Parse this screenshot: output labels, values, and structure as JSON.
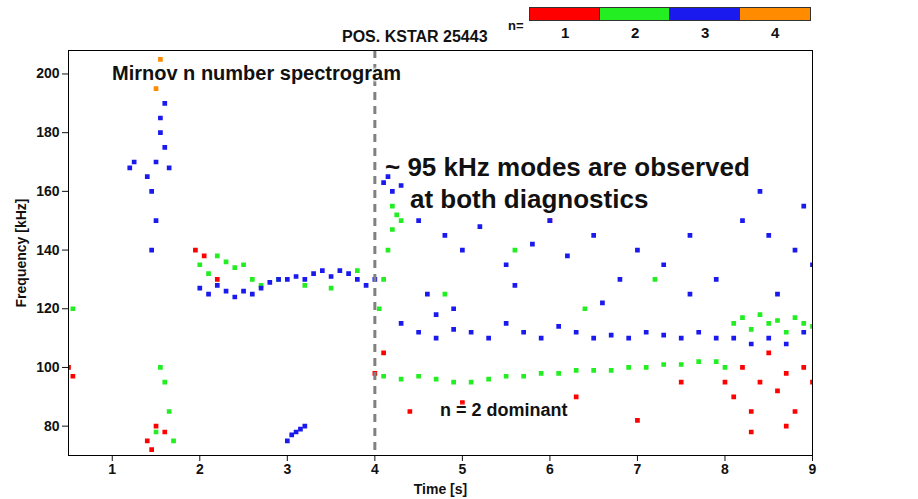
{
  "chart_data": {
    "type": "scatter",
    "title": "POS. KSTAR 25443",
    "xlabel": "Time [s]",
    "ylabel": "Frequency [kHz]",
    "xlim": [
      0.5,
      9
    ],
    "ylim": [
      70,
      208
    ],
    "xticks": [
      1,
      2,
      3,
      4,
      5,
      6,
      7,
      8,
      9
    ],
    "yticks": [
      80,
      100,
      120,
      140,
      160,
      180,
      200
    ],
    "grid": false,
    "marker": "square",
    "legend": "top-right",
    "legend_title": "n=",
    "reference_line": {
      "x": 4,
      "color": "#808080",
      "line_style": "dashed"
    },
    "annotations": [
      "Mirnov n number spectrogram",
      "~ 95 kHz modes are observed",
      "at both diagnostics",
      "n = 2 dominant"
    ],
    "series": [
      {
        "name": "1",
        "color": "#ff0000",
        "points": [
          [
            0.5,
            100
          ],
          [
            0.55,
            97
          ],
          [
            1.4,
            75
          ],
          [
            1.45,
            72
          ],
          [
            1.5,
            80
          ],
          [
            1.6,
            78
          ],
          [
            1.95,
            140
          ],
          [
            2.05,
            138
          ],
          [
            2.2,
            130
          ],
          [
            4.0,
            98
          ],
          [
            4.1,
            105
          ],
          [
            4.4,
            85
          ],
          [
            5.0,
            88
          ],
          [
            6.0,
            150
          ],
          [
            6.3,
            90
          ],
          [
            7.0,
            82
          ],
          [
            7.5,
            95
          ],
          [
            8.0,
            95
          ],
          [
            8.1,
            90
          ],
          [
            8.2,
            100
          ],
          [
            8.3,
            85
          ],
          [
            8.3,
            78
          ],
          [
            8.4,
            95
          ],
          [
            8.5,
            105
          ],
          [
            8.6,
            92
          ],
          [
            8.7,
            98
          ],
          [
            8.7,
            80
          ],
          [
            8.8,
            85
          ],
          [
            8.9,
            100
          ],
          [
            9.0,
            95
          ]
        ]
      },
      {
        "name": "2",
        "color": "#22ee22",
        "points": [
          [
            0.55,
            120
          ],
          [
            1.5,
            78
          ],
          [
            1.55,
            100
          ],
          [
            1.6,
            95
          ],
          [
            1.65,
            85
          ],
          [
            1.7,
            75
          ],
          [
            2.0,
            135
          ],
          [
            2.1,
            132
          ],
          [
            2.2,
            138
          ],
          [
            2.3,
            136
          ],
          [
            2.4,
            134
          ],
          [
            2.5,
            135
          ],
          [
            2.6,
            130
          ],
          [
            2.7,
            128
          ],
          [
            2.9,
            130
          ],
          [
            3.2,
            128
          ],
          [
            3.5,
            127
          ],
          [
            3.8,
            133
          ],
          [
            4.05,
            120
          ],
          [
            4.1,
            130
          ],
          [
            4.15,
            140
          ],
          [
            4.2,
            147
          ],
          [
            4.2,
            155
          ],
          [
            4.25,
            152
          ],
          [
            4.3,
            150
          ],
          [
            4.1,
            97
          ],
          [
            4.3,
            96
          ],
          [
            4.5,
            97
          ],
          [
            4.7,
            96
          ],
          [
            4.9,
            95
          ],
          [
            5.1,
            95
          ],
          [
            5.3,
            96
          ],
          [
            5.5,
            97
          ],
          [
            5.7,
            97
          ],
          [
            5.9,
            98
          ],
          [
            6.1,
            98
          ],
          [
            6.3,
            99
          ],
          [
            6.5,
            99
          ],
          [
            6.7,
            99
          ],
          [
            6.9,
            100
          ],
          [
            7.1,
            100
          ],
          [
            7.3,
            101
          ],
          [
            7.5,
            101
          ],
          [
            7.7,
            102
          ],
          [
            7.9,
            102
          ],
          [
            8.0,
            100
          ],
          [
            8.1,
            115
          ],
          [
            8.2,
            117
          ],
          [
            8.3,
            113
          ],
          [
            8.4,
            118
          ],
          [
            8.5,
            115
          ],
          [
            8.6,
            116
          ],
          [
            8.7,
            112
          ],
          [
            8.8,
            117
          ],
          [
            8.9,
            115
          ],
          [
            9.0,
            114
          ],
          [
            4.8,
            125
          ],
          [
            5.6,
            140
          ],
          [
            6.4,
            120
          ],
          [
            7.2,
            130
          ]
        ]
      },
      {
        "name": "3",
        "color": "#1a1aee",
        "points": [
          [
            1.2,
            168
          ],
          [
            1.25,
            170
          ],
          [
            1.4,
            165
          ],
          [
            1.45,
            160
          ],
          [
            1.45,
            140
          ],
          [
            1.5,
            170
          ],
          [
            1.5,
            150
          ],
          [
            1.55,
            180
          ],
          [
            1.55,
            185
          ],
          [
            1.6,
            175
          ],
          [
            1.6,
            190
          ],
          [
            1.65,
            168
          ],
          [
            2.0,
            127
          ],
          [
            2.1,
            125
          ],
          [
            2.2,
            128
          ],
          [
            2.3,
            126
          ],
          [
            2.4,
            124
          ],
          [
            2.5,
            126
          ],
          [
            2.6,
            125
          ],
          [
            2.7,
            127
          ],
          [
            2.8,
            129
          ],
          [
            2.9,
            130
          ],
          [
            3.0,
            130
          ],
          [
            3.1,
            131
          ],
          [
            3.2,
            130
          ],
          [
            3.3,
            132
          ],
          [
            3.4,
            133
          ],
          [
            3.5,
            131
          ],
          [
            3.6,
            133
          ],
          [
            3.7,
            132
          ],
          [
            3.8,
            130
          ],
          [
            3.9,
            128
          ],
          [
            4.0,
            130
          ],
          [
            3.0,
            75
          ],
          [
            3.05,
            77
          ],
          [
            3.1,
            78
          ],
          [
            3.15,
            79
          ],
          [
            3.2,
            80
          ],
          [
            4.1,
            163
          ],
          [
            4.15,
            165
          ],
          [
            4.2,
            160
          ],
          [
            4.3,
            162
          ],
          [
            4.3,
            115
          ],
          [
            4.5,
            112
          ],
          [
            4.7,
            110
          ],
          [
            4.9,
            113
          ],
          [
            5.1,
            112
          ],
          [
            5.3,
            110
          ],
          [
            5.5,
            115
          ],
          [
            5.7,
            112
          ],
          [
            5.9,
            110
          ],
          [
            6.1,
            114
          ],
          [
            6.3,
            112
          ],
          [
            6.5,
            110
          ],
          [
            6.7,
            111
          ],
          [
            6.9,
            110
          ],
          [
            7.1,
            112
          ],
          [
            7.3,
            111
          ],
          [
            7.5,
            110
          ],
          [
            7.7,
            112
          ],
          [
            7.9,
            110
          ],
          [
            8.1,
            110
          ],
          [
            8.3,
            108
          ],
          [
            8.5,
            110
          ],
          [
            8.7,
            108
          ],
          [
            8.9,
            112
          ],
          [
            4.5,
            150
          ],
          [
            4.8,
            145
          ],
          [
            5.0,
            140
          ],
          [
            5.2,
            148
          ],
          [
            5.5,
            135
          ],
          [
            5.8,
            142
          ],
          [
            6.0,
            150
          ],
          [
            6.2,
            138
          ],
          [
            6.5,
            145
          ],
          [
            6.8,
            130
          ],
          [
            7.0,
            140
          ],
          [
            7.3,
            135
          ],
          [
            7.6,
            145
          ],
          [
            7.9,
            130
          ],
          [
            8.2,
            150
          ],
          [
            8.5,
            145
          ],
          [
            8.8,
            140
          ],
          [
            9.0,
            135
          ],
          [
            4.6,
            125
          ],
          [
            5.6,
            128
          ],
          [
            6.6,
            122
          ],
          [
            7.6,
            125
          ],
          [
            8.6,
            125
          ],
          [
            8.9,
            155
          ],
          [
            8.4,
            160
          ],
          [
            4.7,
            118
          ],
          [
            4.9,
            120
          ]
        ]
      },
      {
        "name": "4",
        "color": "#ff8c00",
        "points": [
          [
            1.5,
            195
          ],
          [
            1.52,
            200
          ],
          [
            1.55,
            205
          ]
        ]
      }
    ]
  }
}
